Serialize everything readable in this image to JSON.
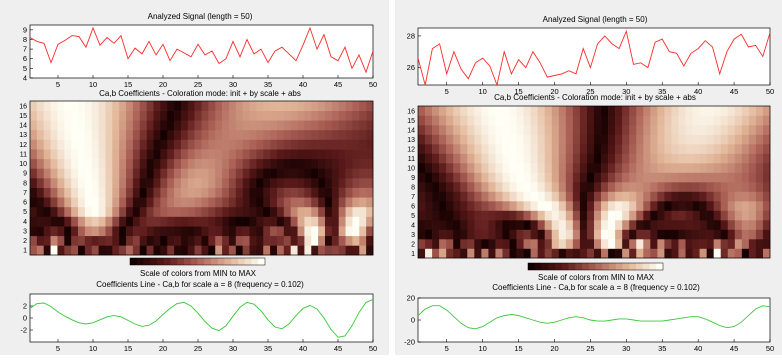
{
  "panels": [
    {
      "signal": {
        "title": "Analyzed Signal  (length = 50)",
        "x": [
          1,
          2,
          3,
          4,
          5,
          6,
          7,
          8,
          9,
          10,
          11,
          12,
          13,
          14,
          15,
          16,
          17,
          18,
          19,
          20,
          21,
          22,
          23,
          24,
          25,
          26,
          27,
          28,
          29,
          30,
          31,
          32,
          33,
          34,
          35,
          36,
          37,
          38,
          39,
          40,
          41,
          42,
          43,
          44,
          45,
          46,
          47,
          48,
          49,
          50
        ],
        "y": [
          8.2,
          7.8,
          7.6,
          5.6,
          7.5,
          7.9,
          8.4,
          8.3,
          7.2,
          9.2,
          7.4,
          8.2,
          7.6,
          8.4,
          6.0,
          7.1,
          6.5,
          7.8,
          6.4,
          7.5,
          5.8,
          7.0,
          6.6,
          6.2,
          7.5,
          6.4,
          6.8,
          5.5,
          6.0,
          7.8,
          6.2,
          8.0,
          6.5,
          7.0,
          5.6,
          6.8,
          7.2,
          6.5,
          5.8,
          7.4,
          9.2,
          7.0,
          8.5,
          6.2,
          5.8,
          7.2,
          5.0,
          6.4,
          4.6,
          6.8
        ],
        "xlim": [
          1,
          50
        ],
        "ylim": [
          4,
          9.5
        ],
        "xticks": [
          5,
          10,
          15,
          20,
          25,
          30,
          35,
          40,
          45,
          50
        ],
        "yticks": [
          4,
          5,
          6,
          7,
          8,
          9
        ],
        "color": "#ff2a2a"
      },
      "coeffs": {
        "title": "Ca,b Coefficients - Coloration mode: init + by scale + abs",
        "yticks": [
          1,
          2,
          3,
          4,
          5,
          6,
          7,
          8,
          9,
          10,
          11,
          12,
          13,
          14,
          15,
          16
        ],
        "xticks": [
          5,
          10,
          15,
          20,
          25,
          30,
          35,
          40,
          45,
          50
        ]
      },
      "colorbar_label": "Scale of colors from MIN to MAX",
      "line": {
        "title": "Coefficients Line - Ca,b for scale a = 8  (frequency =  0.102)",
        "x": [
          1,
          2,
          3,
          4,
          5,
          6,
          7,
          8,
          9,
          10,
          11,
          12,
          13,
          14,
          15,
          16,
          17,
          18,
          19,
          20,
          21,
          22,
          23,
          24,
          25,
          26,
          27,
          28,
          29,
          30,
          31,
          32,
          33,
          34,
          35,
          36,
          37,
          38,
          39,
          40,
          41,
          42,
          43,
          44,
          45,
          46,
          47,
          48,
          49,
          50
        ],
        "y": [
          1.6,
          2.4,
          2.5,
          1.9,
          1.0,
          0.3,
          -0.3,
          -0.8,
          -1.0,
          -0.8,
          -0.3,
          0.2,
          0.4,
          0.2,
          -0.4,
          -1.0,
          -1.4,
          -1.2,
          -0.5,
          0.6,
          1.6,
          2.4,
          2.6,
          2.0,
          0.8,
          -0.6,
          -1.7,
          -2.1,
          -1.3,
          0.3,
          1.8,
          2.6,
          2.3,
          1.2,
          -0.3,
          -1.5,
          -1.8,
          -1.0,
          0.4,
          1.6,
          2.1,
          1.5,
          0.0,
          -1.9,
          -3.2,
          -3.0,
          -1.3,
          0.9,
          2.6,
          3.1
        ],
        "xlim": [
          1,
          50
        ],
        "ylim": [
          -4,
          4
        ],
        "xticks": [
          5,
          10,
          15,
          20,
          25,
          30,
          35,
          40,
          45,
          50
        ],
        "yticks": [
          -2,
          0,
          2
        ],
        "color": "#38c838"
      }
    },
    {
      "signal": {
        "title": "Analyzed Signal  (length = 50)",
        "x": [
          1,
          2,
          3,
          4,
          5,
          6,
          7,
          8,
          9,
          10,
          11,
          12,
          13,
          14,
          15,
          16,
          17,
          18,
          19,
          20,
          21,
          22,
          23,
          24,
          25,
          26,
          27,
          28,
          29,
          30,
          31,
          32,
          33,
          34,
          35,
          36,
          37,
          38,
          39,
          40,
          41,
          42,
          43,
          44,
          45,
          46,
          47,
          48,
          49,
          50
        ],
        "y": [
          26.6,
          24.9,
          27.2,
          27.5,
          25.6,
          27.0,
          25.9,
          25.3,
          26.3,
          26.6,
          26.1,
          24.9,
          27.0,
          25.6,
          26.5,
          26.0,
          27.0,
          26.3,
          25.4,
          25.5,
          25.6,
          25.8,
          25.6,
          27.2,
          26.0,
          27.5,
          28.0,
          27.5,
          27.2,
          28.3,
          26.2,
          26.3,
          26.0,
          27.6,
          27.8,
          27.0,
          26.9,
          26.1,
          26.9,
          27.2,
          27.7,
          27.3,
          25.6,
          27.0,
          27.8,
          28.1,
          27.3,
          27.4,
          26.7,
          28.2
        ],
        "xlim": [
          1,
          50
        ],
        "ylim": [
          24.9,
          28.5
        ],
        "xticks": [
          5,
          10,
          15,
          20,
          25,
          30,
          35,
          40,
          45,
          50
        ],
        "yticks": [
          26,
          28
        ],
        "color": "#ff2a2a"
      },
      "coeffs": {
        "title": "Ca,b Coefficients - Coloration mode: init + by scale + abs",
        "yticks": [
          1,
          2,
          3,
          4,
          5,
          6,
          7,
          8,
          9,
          10,
          11,
          12,
          13,
          14,
          15,
          16
        ],
        "xticks": [
          5,
          10,
          15,
          20,
          25,
          30,
          35,
          40,
          45,
          50
        ]
      },
      "colorbar_label": "Scale of colors from MIN to MAX",
      "line": {
        "title": "Coefficients Line - Ca,b for scale a = 8  (frequency =  0.102)",
        "x": [
          1,
          2,
          3,
          4,
          5,
          6,
          7,
          8,
          9,
          10,
          11,
          12,
          13,
          14,
          15,
          16,
          17,
          18,
          19,
          20,
          21,
          22,
          23,
          24,
          25,
          26,
          27,
          28,
          29,
          30,
          31,
          32,
          33,
          34,
          35,
          36,
          37,
          38,
          39,
          40,
          41,
          42,
          43,
          44,
          45,
          46,
          47,
          48,
          49,
          50
        ],
        "y": [
          4,
          10,
          13,
          13,
          9,
          3,
          -3,
          -7,
          -8,
          -6,
          -2,
          2,
          4,
          5,
          4,
          2,
          0,
          -2,
          -3,
          -2,
          0,
          2,
          3,
          2,
          0,
          -1,
          -1,
          0,
          1,
          1,
          0,
          -1,
          -1,
          -1,
          -1,
          0,
          1,
          2,
          3,
          3,
          1,
          -2,
          -5,
          -7,
          -6,
          -2,
          4,
          10,
          13,
          12
        ],
        "xlim": [
          1,
          50
        ],
        "ylim": [
          -20,
          20
        ],
        "xticks": [
          5,
          10,
          15,
          20,
          25,
          30,
          35,
          40,
          45,
          50
        ],
        "yticks": [
          -20,
          0,
          20
        ],
        "color": "#38c838"
      }
    }
  ]
}
